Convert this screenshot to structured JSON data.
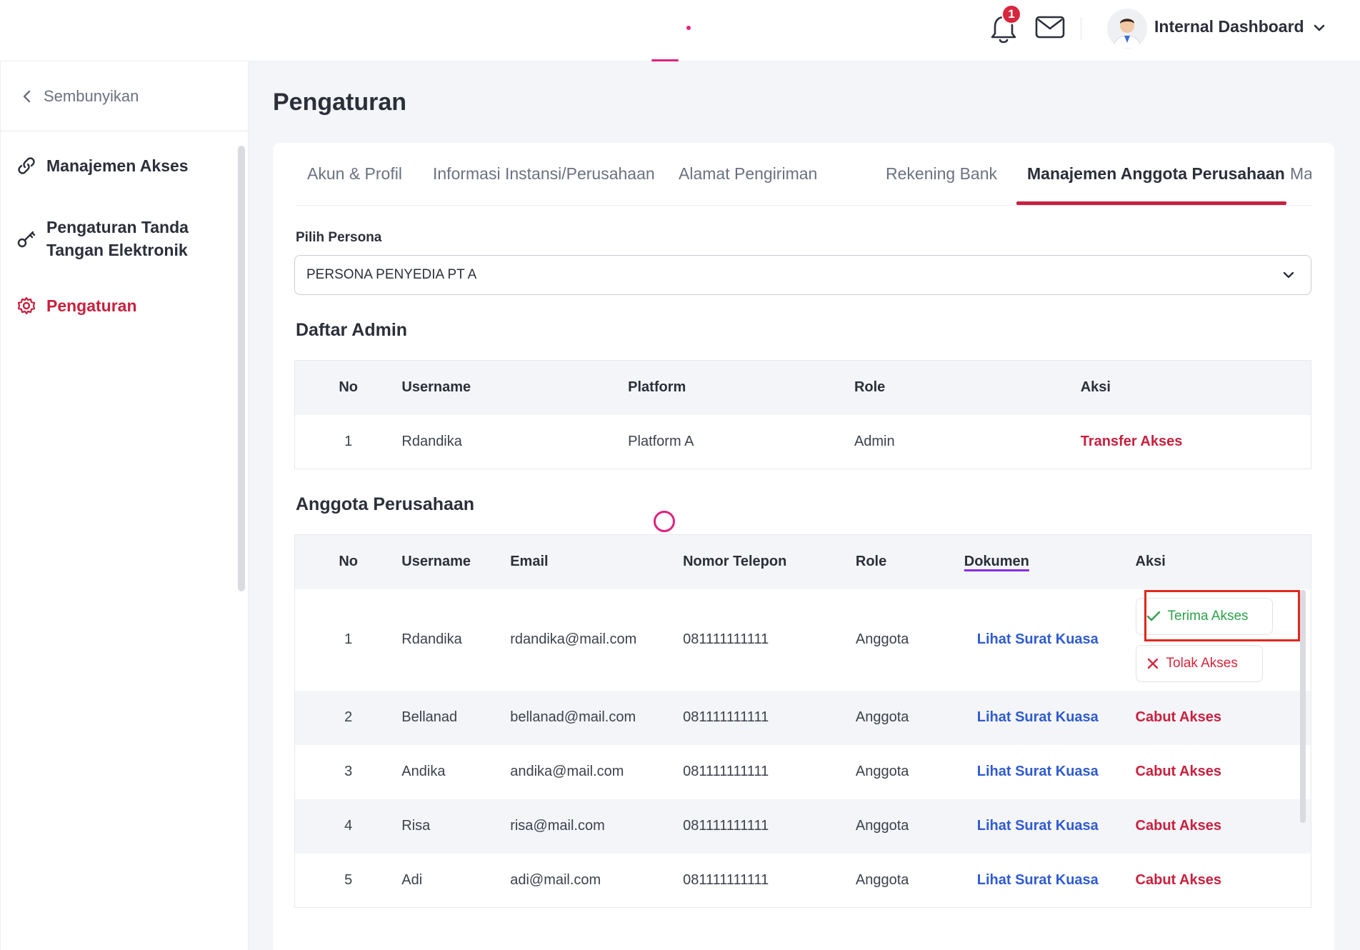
{
  "header": {
    "notification_count": "1",
    "user_name": "Internal Dashboard",
    "icons": [
      "bell-icon",
      "mail-icon",
      "avatar",
      "chevron-down-icon"
    ]
  },
  "sidebar": {
    "hide_label": "Sembunyikan",
    "items": [
      {
        "label": "Manajemen Akses",
        "icon": "link-icon",
        "active": false
      },
      {
        "label_line1": "Pengaturan Tanda",
        "label_line2": "Tangan Elektronik",
        "icon": "key-icon",
        "active": false
      },
      {
        "label": "Pengaturan",
        "icon": "gear-icon",
        "active": true
      }
    ]
  },
  "page": {
    "title": "Pengaturan"
  },
  "tabs": [
    {
      "label": "Akun & Profil",
      "active": false
    },
    {
      "label": "Informasi Instansi/Perusahaan",
      "active": false
    },
    {
      "label": "Alamat Pengiriman",
      "active": false
    },
    {
      "label": "Rekening Bank",
      "active": false
    },
    {
      "label": "Manajemen Anggota Perusahaan",
      "active": true
    },
    {
      "label": "Ma",
      "active": false
    }
  ],
  "persona": {
    "label": "Pilih Persona",
    "value": "PERSONA PENYEDIA PT A"
  },
  "admin_section": {
    "title": "Daftar Admin",
    "headers": [
      "No",
      "Username",
      "Platform",
      "Role",
      "Aksi"
    ],
    "rows": [
      {
        "no": "1",
        "username": "Rdandika",
        "platform": "Platform A",
        "role": "Admin",
        "action": "Transfer Akses"
      }
    ]
  },
  "member_section": {
    "title": "Anggota Perusahaan",
    "headers": [
      "No",
      "Username",
      "Email",
      "Nomor Telepon",
      "Role",
      "Dokumen",
      "Aksi"
    ],
    "accept_label": "Terima Akses",
    "reject_label": "Tolak Akses",
    "rows": [
      {
        "no": "1",
        "username": "Rdandika",
        "email": "rdandika@mail.com",
        "phone": "081111111111",
        "role": "Anggota",
        "document": "Lihat Surat Kuasa"
      },
      {
        "no": "2",
        "username": "Bellanad",
        "email": "bellanad@mail.com",
        "phone": "081111111111",
        "role": "Anggota",
        "document": "Lihat Surat Kuasa",
        "action": "Cabut Akses"
      },
      {
        "no": "3",
        "username": "Andika",
        "email": "andika@mail.com",
        "phone": "081111111111",
        "role": "Anggota",
        "document": "Lihat Surat Kuasa",
        "action": "Cabut Akses"
      },
      {
        "no": "4",
        "username": "Risa",
        "email": "risa@mail.com",
        "phone": "081111111111",
        "role": "Anggota",
        "document": "Lihat Surat Kuasa",
        "action": "Cabut Akses"
      },
      {
        "no": "5",
        "username": "Adi",
        "email": "adi@mail.com",
        "phone": "081111111111",
        "role": "Anggota",
        "document": "Lihat Surat Kuasa",
        "action": "Cabut Akses"
      }
    ]
  },
  "colors": {
    "accent": "#c8203e",
    "link": "#2f5bd0",
    "accept": "#2da24a",
    "reject": "#d7263d",
    "highlight_box": "#e0271d"
  }
}
